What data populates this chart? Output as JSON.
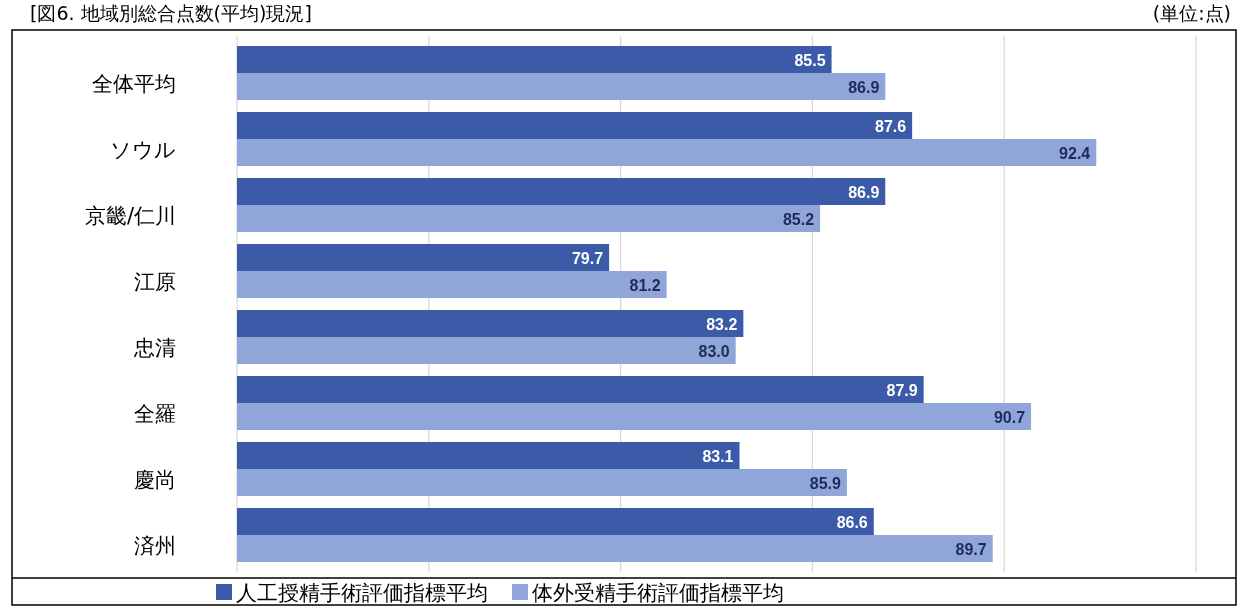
{
  "chart_data": {
    "type": "bar",
    "orientation": "horizontal",
    "title": "[図6. 地域別総合点数(平均)現況]",
    "annotations": [
      "(単位:点)"
    ],
    "categories": [
      "全体平均",
      "ソウル",
      "京畿/仁川",
      "江原",
      "忠清",
      "全羅",
      "慶尚",
      "済州"
    ],
    "series": [
      {
        "name": "人工授精手術評価指標平均",
        "color": "#3b5ba9",
        "values": [
          85.5,
          87.6,
          86.9,
          79.7,
          83.2,
          87.9,
          83.1,
          86.6
        ],
        "value_labels": [
          "85.5",
          "87.6",
          "86.9",
          "79.7",
          "83.2",
          "87.9",
          "83.1",
          "86.6"
        ]
      },
      {
        "name": "体外受精手術評価指標平均",
        "color": "#91a6d8",
        "values": [
          86.9,
          92.4,
          85.2,
          81.2,
          83.0,
          90.7,
          85.9,
          89.7
        ],
        "value_labels": [
          "86.9",
          "92.4",
          "85.2",
          "81.2",
          "83.0",
          "90.7",
          "85.9",
          "89.7"
        ]
      }
    ],
    "xlim": [
      70,
      95
    ],
    "xticks": [
      {
        "value": 70,
        "label": null
      },
      {
        "value": 75,
        "label": null
      },
      {
        "value": 80,
        "label": null
      },
      {
        "value": 85,
        "label": null
      },
      {
        "value": 90,
        "label": null
      },
      {
        "value": 95,
        "label": null
      }
    ],
    "grid": "x",
    "legend": "bottom",
    "tick_labels": "y"
  }
}
